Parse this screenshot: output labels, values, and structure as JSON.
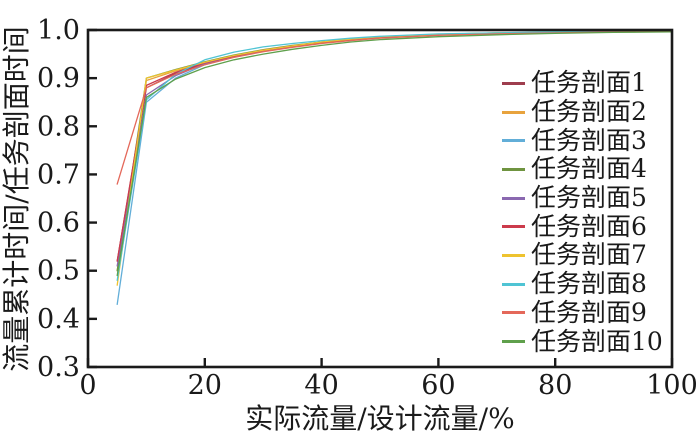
{
  "chart_data": {
    "type": "line",
    "title": "",
    "xlabel": "实际流量/设计流量/%",
    "ylabel": "流量累计时间/任务剖面时间",
    "xlim": [
      0,
      100
    ],
    "ylim": [
      0.3,
      1.0
    ],
    "xticks": [
      "0",
      "20",
      "40",
      "60",
      "80",
      "100"
    ],
    "yticks": [
      "0.3",
      "0.4",
      "0.5",
      "0.6",
      "0.7",
      "0.8",
      "0.9",
      "1.0"
    ],
    "grid": false,
    "legend_position": "inside-right",
    "axis_color": "#1a1a1a",
    "x": [
      5,
      10,
      15,
      20,
      25,
      30,
      35,
      40,
      45,
      50,
      60,
      70,
      80,
      90,
      100
    ],
    "series": [
      {
        "name": "任务剖面1",
        "color": "#9e3d4e",
        "values": [
          0.52,
          0.88,
          0.91,
          0.93,
          0.945,
          0.957,
          0.966,
          0.974,
          0.98,
          0.985,
          0.99,
          0.993,
          0.995,
          0.996,
          0.997
        ]
      },
      {
        "name": "任务剖面2",
        "color": "#e8a33d",
        "values": [
          0.5,
          0.895,
          0.915,
          0.932,
          0.947,
          0.958,
          0.967,
          0.975,
          0.981,
          0.985,
          0.99,
          0.993,
          0.995,
          0.996,
          0.997
        ]
      },
      {
        "name": "任务剖面3",
        "color": "#62aed8",
        "values": [
          0.43,
          0.85,
          0.9,
          0.928,
          0.944,
          0.956,
          0.965,
          0.973,
          0.979,
          0.984,
          0.99,
          0.993,
          0.995,
          0.996,
          0.997
        ]
      },
      {
        "name": "任务剖面4",
        "color": "#6f9440",
        "values": [
          0.5,
          0.9,
          0.918,
          0.934,
          0.948,
          0.959,
          0.968,
          0.975,
          0.981,
          0.986,
          0.991,
          0.994,
          0.995,
          0.996,
          0.997
        ]
      },
      {
        "name": "任务剖面5",
        "color": "#8a68b0",
        "values": [
          0.51,
          0.865,
          0.905,
          0.93,
          0.945,
          0.957,
          0.966,
          0.974,
          0.98,
          0.985,
          0.99,
          0.993,
          0.995,
          0.996,
          0.997
        ]
      },
      {
        "name": "任务剖面6",
        "color": "#cc3b4c",
        "values": [
          0.52,
          0.885,
          0.912,
          0.932,
          0.946,
          0.958,
          0.967,
          0.974,
          0.98,
          0.985,
          0.99,
          0.993,
          0.995,
          0.996,
          0.997
        ]
      },
      {
        "name": "任务剖面7",
        "color": "#eec32f",
        "values": [
          0.47,
          0.9,
          0.917,
          0.933,
          0.947,
          0.958,
          0.967,
          0.975,
          0.981,
          0.986,
          0.991,
          0.994,
          0.995,
          0.996,
          0.997
        ]
      },
      {
        "name": "任务剖面8",
        "color": "#4fc4d4",
        "values": [
          0.48,
          0.855,
          0.908,
          0.938,
          0.954,
          0.965,
          0.972,
          0.978,
          0.983,
          0.987,
          0.992,
          0.994,
          0.996,
          0.997,
          0.998
        ]
      },
      {
        "name": "任务剖面9",
        "color": "#e4685a",
        "values": [
          0.68,
          0.88,
          0.908,
          0.928,
          0.943,
          0.955,
          0.964,
          0.972,
          0.978,
          0.983,
          0.989,
          0.992,
          0.994,
          0.996,
          0.997
        ]
      },
      {
        "name": "任务剖面10",
        "color": "#5fa04c",
        "values": [
          0.49,
          0.86,
          0.898,
          0.922,
          0.938,
          0.95,
          0.96,
          0.968,
          0.975,
          0.98,
          0.986,
          0.99,
          0.993,
          0.995,
          0.996
        ]
      }
    ]
  }
}
